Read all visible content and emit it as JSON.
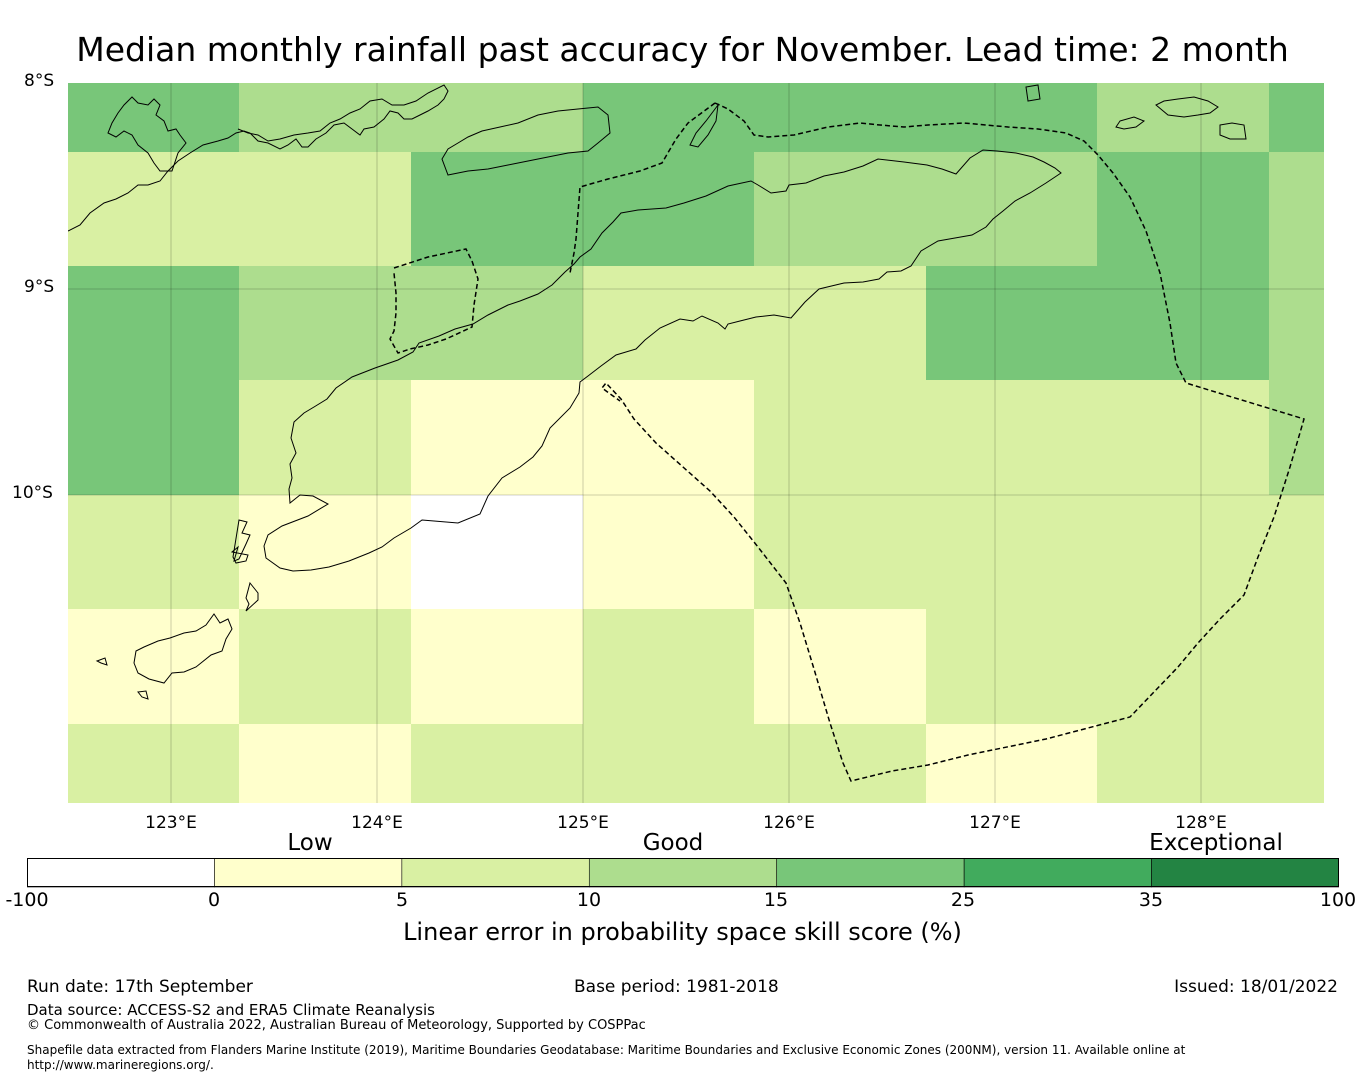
{
  "title": "Median monthly rainfall past accuracy for November. Lead time: 2 month",
  "map": {
    "lat_labels": [
      "8°S",
      "9°S",
      "10°S"
    ],
    "lon_labels": [
      "123°E",
      "124°E",
      "125°E",
      "126°E",
      "127°E",
      "128°E"
    ],
    "lat_range": [
      -8.0,
      -11.5
    ],
    "lon_range": [
      122.5,
      128.6
    ],
    "cell_size_deg": 0.833,
    "skill_grid_percent_class": [
      [
        "15-25",
        "10-15",
        "10-15",
        "15-25",
        "15-25",
        "15-25",
        "10-15",
        "15-25"
      ],
      [
        "5-10",
        "5-10",
        "15-25",
        "15-25",
        "10-15",
        "10-15",
        "15-25",
        "10-15"
      ],
      [
        "15-25",
        "10-15",
        "10-15",
        "5-10",
        "5-10",
        "15-25",
        "15-25",
        "10-15"
      ],
      [
        "15-25",
        "5-10",
        "0-5",
        "0-5",
        "5-10",
        "5-10",
        "5-10",
        "10-15"
      ],
      [
        "5-10",
        "0-5",
        "-100-0",
        "0-5",
        "5-10",
        "5-10",
        "5-10",
        "5-10"
      ],
      [
        "0-5",
        "5-10",
        "0-5",
        "5-10",
        "0-5",
        "5-10",
        "5-10",
        "5-10"
      ],
      [
        "5-10",
        "0-5",
        "5-10",
        "5-10",
        "5-10",
        "0-5",
        "5-10",
        "5-10"
      ]
    ]
  },
  "colorbar": {
    "category_labels": [
      "Low",
      "Good",
      "Exceptional"
    ],
    "ticks": [
      "-100",
      "0",
      "5",
      "10",
      "15",
      "25",
      "35",
      "100"
    ],
    "colors": [
      "#ffffff",
      "#ffffcc",
      "#d9f0a3",
      "#addd8e",
      "#78c679",
      "#41ab5d",
      "#238443"
    ],
    "caption": "Linear error in probability space skill score (%)"
  },
  "footer": {
    "run_date": "Run date: 17th September",
    "base_period": "Base period: 1981-2018",
    "issued": "Issued: 18/01/2022",
    "data_source": "Data source: ACCESS-S2 and ERA5 Climate Reanalysis",
    "copyright": "© Commonwealth of Australia 2022, Australian Bureau of Meteorology, Supported by COSPPac",
    "shapefile_line1": "Shapefile data extracted from Flanders Marine Institute (2019), Maritime Boundaries Geodatabase: Maritime Boundaries and Exclusive Economic Zones (200NM), version 11. Available online at",
    "shapefile_line2": "http://www.marineregions.org/."
  }
}
